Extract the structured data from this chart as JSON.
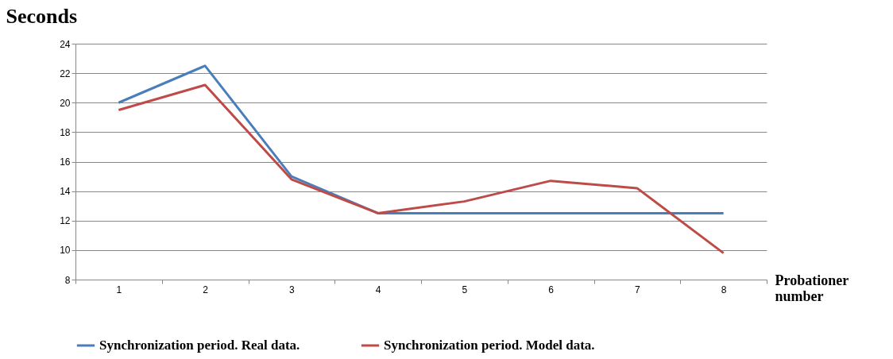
{
  "chart_data": {
    "type": "line",
    "ylabel": "Seconds",
    "xlabel": "Probationer number",
    "categories": [
      "1",
      "2",
      "3",
      "4",
      "5",
      "6",
      "7",
      "8"
    ],
    "series": [
      {
        "name": "Synchronization period. Real data.",
        "color": "#4a7ebb",
        "values": [
          20,
          22.5,
          15,
          12.5,
          12.5,
          12.5,
          12.5,
          12.5
        ]
      },
      {
        "name": "Synchronization period. Model data.",
        "color": "#be4b48",
        "values": [
          19.5,
          21.2,
          14.8,
          12.5,
          13.3,
          14.7,
          14.2,
          9.8
        ]
      }
    ],
    "ylim": [
      8,
      24
    ],
    "yticks": [
      8,
      10,
      12,
      14,
      16,
      18,
      20,
      22,
      24
    ],
    "grid": "y",
    "legend": "bottom",
    "marker": "none",
    "line_style": "solid"
  }
}
